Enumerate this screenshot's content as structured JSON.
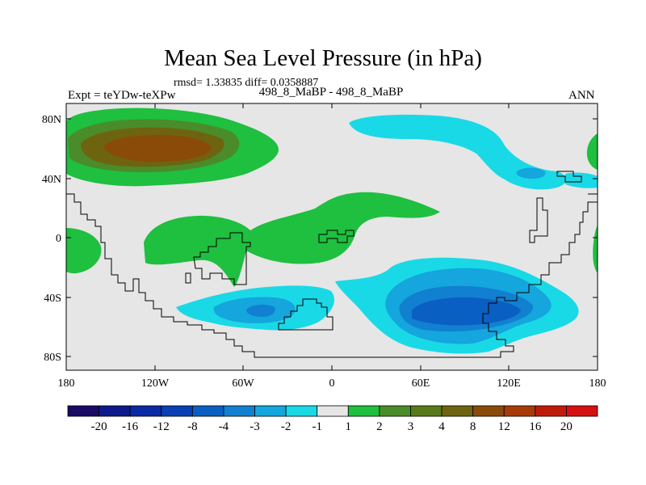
{
  "title": "Mean Sea Level Pressure (in hPa)",
  "stats": "rmsd= 1.33835 diff= 0.0358887",
  "left_label": "Expt = teYDw-teXPw",
  "center_label": "498_8_MaBP - 498_8_MaBP",
  "right_label": "ANN",
  "lat_labels": [
    "80N",
    "40N",
    "0",
    "40S",
    "80S"
  ],
  "lon_labels": [
    "180",
    "120W",
    "60W",
    "0",
    "60E",
    "120E",
    "180"
  ],
  "colorbar": {
    "labels": [
      "-20",
      "-16",
      "-12",
      "-8",
      "-4",
      "-3",
      "-2",
      "-1",
      "1",
      "2",
      "3",
      "4",
      "8",
      "12",
      "16",
      "20"
    ],
    "colors": [
      "#1a0a66",
      "#0d1a8c",
      "#0a2aa5",
      "#0a3fb5",
      "#0a5fc2",
      "#1180d0",
      "#14a6dd",
      "#1ad9e6",
      "#e6e6e6",
      "#1fbf3f",
      "#4a8c2a",
      "#5a7a1a",
      "#6e6410",
      "#8a4a08",
      "#a83a08",
      "#c01a0a",
      "#d41010"
    ]
  },
  "colors": {
    "background": "#e6e6e6",
    "coast": "#000000"
  }
}
